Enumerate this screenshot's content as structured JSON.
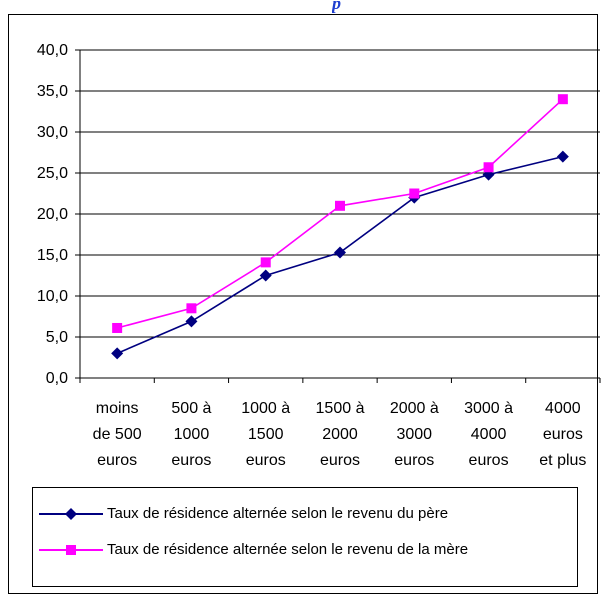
{
  "partial_title": "p",
  "chart_data": {
    "type": "line",
    "categories": [
      [
        "moins",
        "de 500",
        "euros"
      ],
      [
        "500 à",
        "1000",
        "euros"
      ],
      [
        "1000 à",
        "1500",
        "euros"
      ],
      [
        "1500 à",
        "2000",
        "euros"
      ],
      [
        "2000 à",
        "3000",
        "euros"
      ],
      [
        "3000 à",
        "4000",
        "euros"
      ],
      [
        "4000",
        "euros",
        "et plus"
      ]
    ],
    "ylim": [
      0,
      40
    ],
    "yticks": [
      "0,0",
      "5,0",
      "10,0",
      "15,0",
      "20,0",
      "25,0",
      "30,0",
      "35,0",
      "40,0"
    ],
    "grid": true,
    "legend_position": "bottom",
    "series": [
      {
        "name": "Taux de résidence alternée selon le revenu du père",
        "values": [
          3.0,
          6.9,
          12.5,
          15.3,
          22.0,
          24.8,
          27.0
        ],
        "color": "#000080",
        "marker": "diamond"
      },
      {
        "name": "Taux de résidence alternée selon le revenu de la mère",
        "values": [
          6.1,
          8.5,
          14.1,
          21.0,
          22.5,
          25.7,
          34.0
        ],
        "color": "#ff00ff",
        "marker": "square"
      }
    ]
  }
}
